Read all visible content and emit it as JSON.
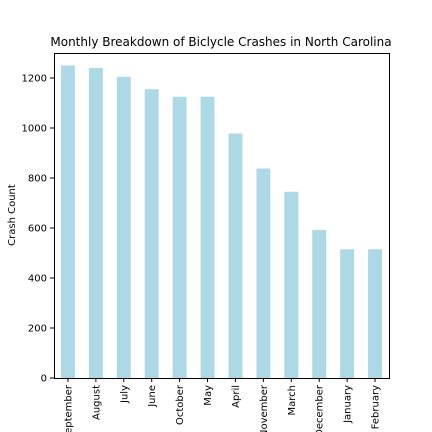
{
  "chart_data": {
    "type": "bar",
    "title": "Monthly Breakdown of Biclycle Crashes in North Carolina",
    "xlabel": "",
    "ylabel": "Crash Count",
    "categories": [
      "September",
      "August",
      "July",
      "June",
      "October",
      "May",
      "April",
      "November",
      "March",
      "December",
      "January",
      "February"
    ],
    "values": [
      1250,
      1240,
      1205,
      1155,
      1125,
      1125,
      978,
      838,
      745,
      592,
      515,
      515
    ],
    "ylim": [
      0,
      1300
    ],
    "yticks": [
      0,
      200,
      400,
      600,
      800,
      1000,
      1200
    ],
    "bar_color": "#add8e6",
    "grid": false,
    "legend": "none"
  }
}
